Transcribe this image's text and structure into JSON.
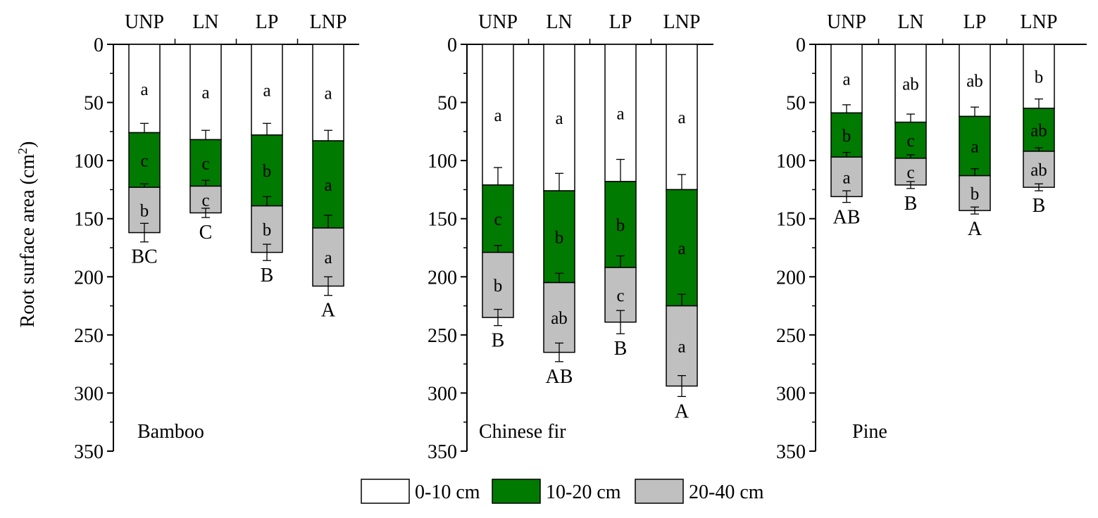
{
  "chart_data": {
    "type": "bar",
    "stacked": true,
    "y_axis_inverted": true,
    "ylabel": "Root surface area (cm",
    "ylabel_superscript": "2",
    "ylabel_suffix": ")",
    "ylim": [
      0,
      350
    ],
    "yticks": [
      0,
      50,
      100,
      150,
      200,
      250,
      300,
      350
    ],
    "categories": [
      "UNP",
      "LN",
      "LP",
      "LNP"
    ],
    "legend": {
      "position": "bottom-center",
      "entries": [
        {
          "label": "0-10 cm",
          "color": "#ffffff"
        },
        {
          "label": "10-20 cm",
          "color": "#007a00"
        },
        {
          "label": "20-40 cm",
          "color": "#c0c0c0"
        }
      ]
    },
    "panels": [
      {
        "name": "Bamboo",
        "series": [
          {
            "name": "0-10 cm",
            "values": [
              76,
              82,
              78,
              83
            ],
            "errors": [
              8,
              8,
              10,
              9
            ],
            "letters": [
              "a",
              "a",
              "a",
              "a"
            ]
          },
          {
            "name": "10-20 cm",
            "values": [
              47,
              40,
              61,
              75
            ],
            "errors": [
              3,
              5,
              8,
              11
            ],
            "letters": [
              "c",
              "c",
              "b",
              "a"
            ]
          },
          {
            "name": "20-40 cm",
            "values": [
              39,
              23,
              40,
              50
            ],
            "errors": [
              8,
              4,
              7,
              8
            ],
            "letters": [
              "b",
              "c",
              "b",
              "a"
            ]
          }
        ],
        "totals_letters": [
          "BC",
          "C",
          "B",
          "A"
        ]
      },
      {
        "name": "Chinese fir",
        "series": [
          {
            "name": "0-10 cm",
            "values": [
              121,
              126,
              118,
              125
            ],
            "errors": [
              15,
              15,
              19,
              13
            ],
            "letters": [
              "a",
              "a",
              "a",
              "a"
            ]
          },
          {
            "name": "10-20 cm",
            "values": [
              58,
              79,
              74,
              100
            ],
            "errors": [
              6,
              8,
              10,
              10
            ],
            "letters": [
              "c",
              "b",
              "b",
              "a"
            ]
          },
          {
            "name": "20-40 cm",
            "values": [
              56,
              60,
              47,
              69
            ],
            "errors": [
              7,
              8,
              10,
              9
            ],
            "letters": [
              "b",
              "ab",
              "c",
              "a"
            ]
          }
        ],
        "totals_letters": [
          "B",
          "AB",
          "B",
          "A"
        ]
      },
      {
        "name": "Pine",
        "series": [
          {
            "name": "0-10 cm",
            "values": [
              59,
              67,
              62,
              55
            ],
            "errors": [
              7,
              7,
              8,
              8
            ],
            "letters": [
              "a",
              "ab",
              "ab",
              "b"
            ]
          },
          {
            "name": "10-20 cm",
            "values": [
              38,
              31,
              51,
              37
            ],
            "errors": [
              4,
              3,
              6,
              3
            ],
            "letters": [
              "b",
              "c",
              "a",
              "ab"
            ]
          },
          {
            "name": "20-40 cm",
            "values": [
              34,
              23,
              30,
              31
            ],
            "errors": [
              5,
              3,
              3,
              3
            ],
            "letters": [
              "a",
              "c",
              "b",
              "ab"
            ]
          }
        ],
        "totals_letters": [
          "AB",
          "B",
          "A",
          "B"
        ]
      }
    ]
  }
}
